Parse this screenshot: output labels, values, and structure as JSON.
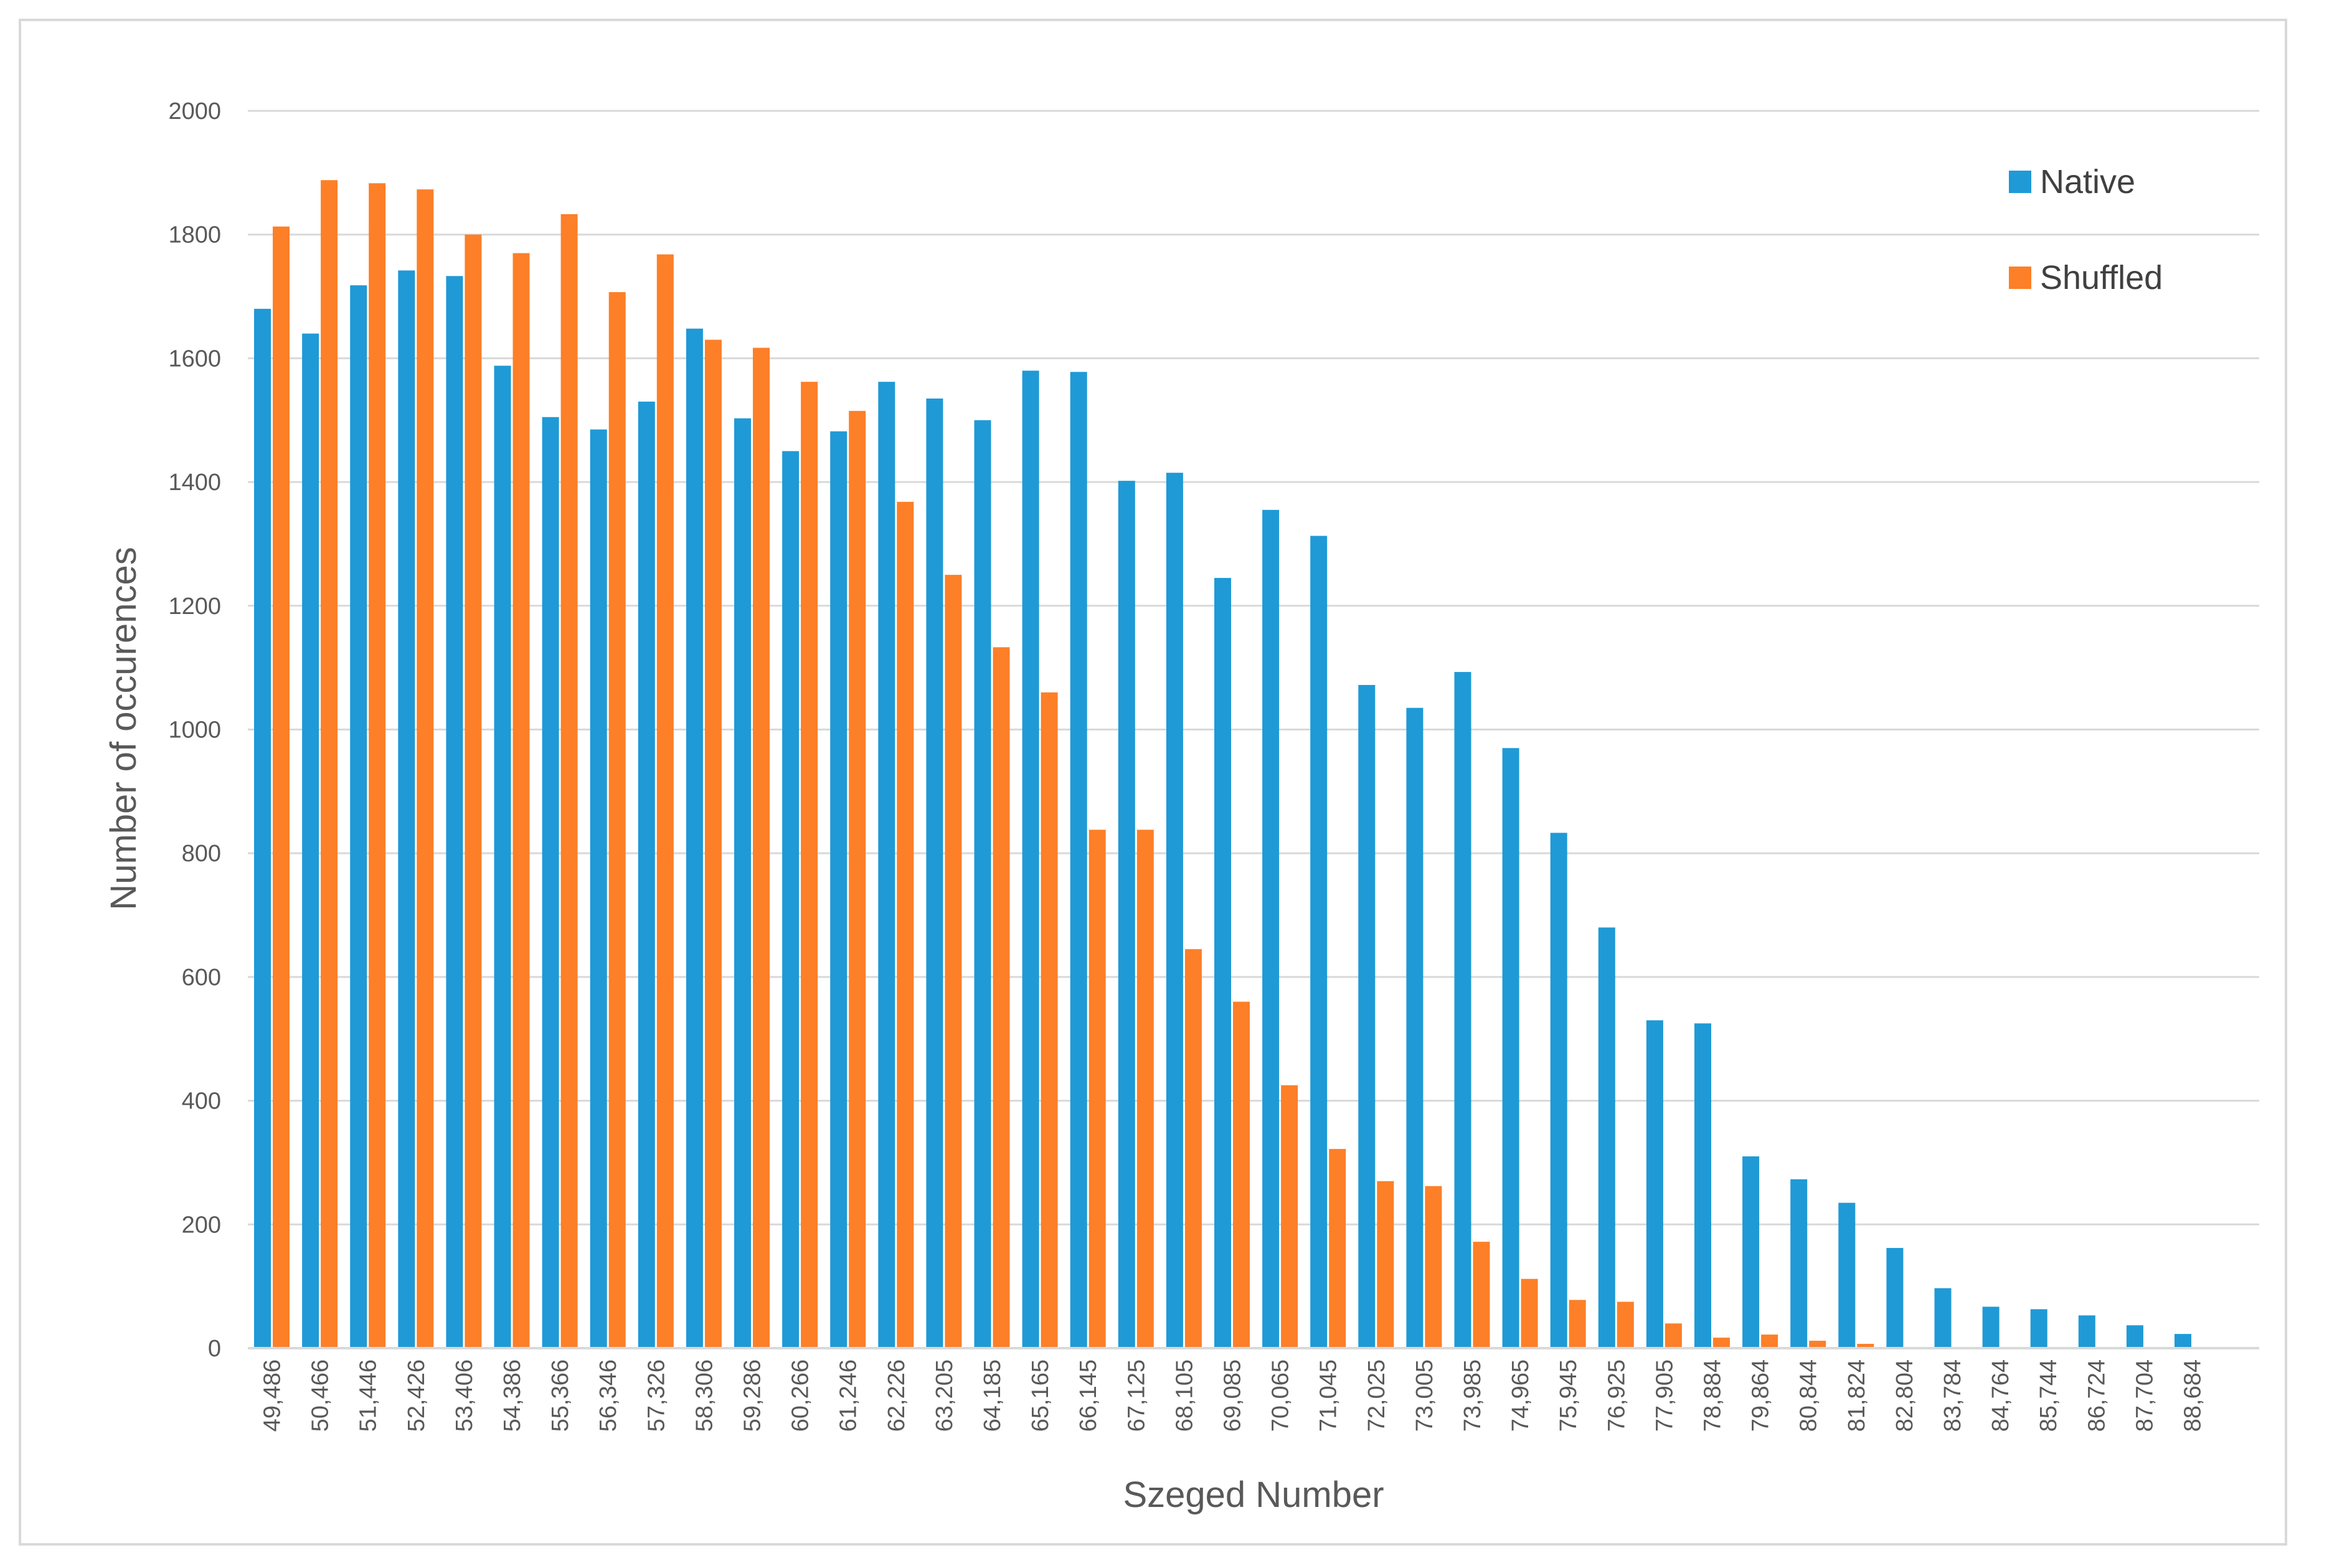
{
  "chart_data": {
    "type": "bar",
    "title": "",
    "xlabel": "Szeged Number",
    "ylabel": "Number of occurences",
    "ylim": [
      0,
      2000
    ],
    "yticks": [
      0,
      200,
      400,
      600,
      800,
      1000,
      1200,
      1400,
      1600,
      1800,
      2000
    ],
    "grid": "horizontal",
    "legend_position": "top-right",
    "categories": [
      "49,486",
      "50,466",
      "51,446",
      "52,426",
      "53,406",
      "54,386",
      "55,366",
      "56,346",
      "57,326",
      "58,306",
      "59,286",
      "60,266",
      "61,246",
      "62,226",
      "63,205",
      "64,185",
      "65,165",
      "66,145",
      "67,125",
      "68,105",
      "69,085",
      "70,065",
      "71,045",
      "72,025",
      "73,005",
      "73,985",
      "74,965",
      "75,945",
      "76,925",
      "77,905",
      "78,884",
      "79,864",
      "80,844",
      "81,824",
      "82,804",
      "83,784",
      "84,764",
      "85,744",
      "86,724",
      "87,704",
      "88,684"
    ],
    "series": [
      {
        "name": "Native",
        "color": "#1f9ad6",
        "values": [
          1680,
          1640,
          1718,
          1742,
          1733,
          1588,
          1505,
          1485,
          1530,
          1648,
          1503,
          1450,
          1482,
          1562,
          1535,
          1500,
          1580,
          1578,
          1402,
          1415,
          1245,
          1355,
          1313,
          1072,
          1035,
          1093,
          970,
          833,
          680,
          530,
          525,
          310,
          273,
          235,
          162,
          97,
          67,
          63,
          53,
          37,
          23
        ]
      },
      {
        "name": "Shuffled",
        "color": "#fd7f28",
        "values": [
          1813,
          1888,
          1883,
          1873,
          1800,
          1770,
          1833,
          1707,
          1768,
          1630,
          1617,
          1562,
          1515,
          1368,
          1250,
          1133,
          1060,
          838,
          838,
          645,
          560,
          425,
          322,
          270,
          262,
          172,
          112,
          78,
          75,
          40,
          17,
          22,
          12,
          7,
          0,
          0,
          0,
          0,
          0,
          0,
          0
        ]
      }
    ]
  }
}
